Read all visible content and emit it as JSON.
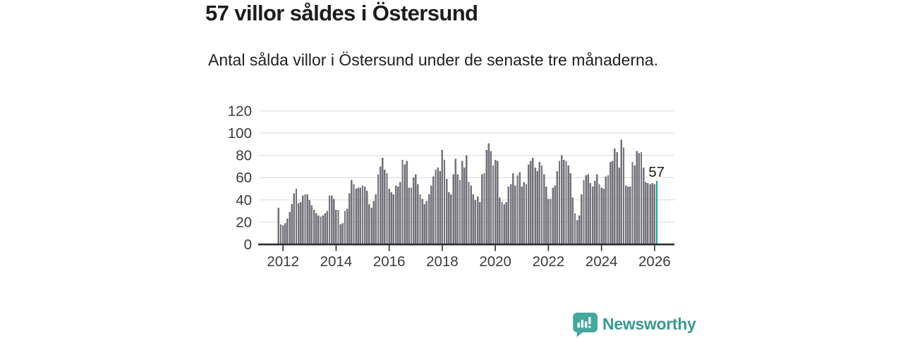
{
  "header": {
    "title": "57 villor såldes i Östersund",
    "subtitle": "Antal sålda villor i Östersund under de senaste tre månaderna."
  },
  "branding": {
    "logo_text": "Newsworthy"
  },
  "colors": {
    "bar": "#71717a",
    "highlight": "#1a9e99",
    "grid": "#dfdfdf",
    "axis": "#2d2d2d",
    "axis_text": "#3b3b3b",
    "annotation_text": "#1b1b1b",
    "logo_icon": "#45a79d",
    "logo_text": "#38998f"
  },
  "chart_data": {
    "type": "bar",
    "title": "57 villor såldes i Östersund",
    "subtitle": "Antal sålda villor i Östersund under de senaste tre månaderna.",
    "x_unit": "month",
    "grid": "horizontal",
    "ylim": [
      0,
      120
    ],
    "y_ticks": [
      0,
      20,
      40,
      60,
      80,
      100,
      120
    ],
    "x_tick_labels": [
      "2012",
      "2014",
      "2016",
      "2018",
      "2020",
      "2022",
      "2024",
      "2026"
    ],
    "values": [
      33,
      18,
      17,
      19,
      23,
      29,
      36,
      46,
      50,
      37,
      38,
      44,
      45,
      45,
      40,
      35,
      31,
      28,
      26,
      25,
      26,
      28,
      30,
      44,
      44,
      41,
      31,
      31,
      18,
      19,
      30,
      32,
      46,
      58,
      54,
      50,
      51,
      51,
      53,
      52,
      48,
      36,
      33,
      39,
      45,
      63,
      70,
      78,
      67,
      64,
      50,
      47,
      45,
      53,
      52,
      56,
      76,
      72,
      75,
      51,
      51,
      60,
      63,
      54,
      45,
      41,
      36,
      39,
      45,
      53,
      61,
      67,
      69,
      66,
      85,
      76,
      59,
      47,
      45,
      63,
      77,
      63,
      58,
      75,
      69,
      80,
      56,
      53,
      45,
      40,
      43,
      38,
      63,
      64,
      85,
      91,
      84,
      71,
      76,
      75,
      42,
      38,
      36,
      38,
      52,
      54,
      64,
      53,
      62,
      65,
      52,
      56,
      54,
      72,
      75,
      78,
      69,
      66,
      74,
      71,
      63,
      52,
      41,
      41,
      51,
      53,
      66,
      75,
      80,
      76,
      75,
      71,
      64,
      42,
      28,
      22,
      26,
      45,
      58,
      62,
      63,
      55,
      52,
      57,
      63,
      54,
      51,
      50,
      61,
      62,
      74,
      75,
      86,
      83,
      69,
      94,
      87,
      53,
      52,
      52,
      74,
      71,
      84,
      82,
      83,
      69,
      56,
      55,
      54,
      55,
      54,
      57
    ],
    "highlight": {
      "position": "last",
      "label": "57"
    }
  }
}
